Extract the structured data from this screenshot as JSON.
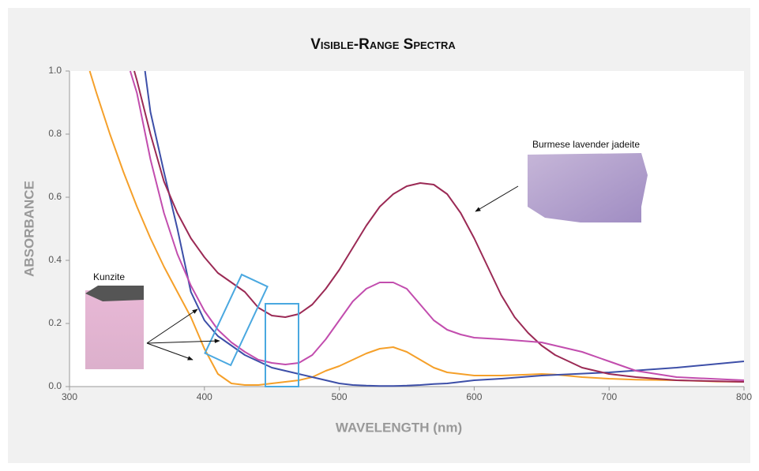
{
  "chart_data": {
    "type": "line",
    "title": "Visible-Range Spectra",
    "xlabel": "WAVELENGTH (nm)",
    "ylabel": "ABSORBANCE",
    "xlim": [
      300,
      800
    ],
    "ylim": [
      0,
      1
    ],
    "xticks": [
      300,
      400,
      500,
      600,
      700,
      800
    ],
    "yticks": [
      {
        "value": 0,
        "label": "0.0"
      },
      0.2,
      0.4,
      0.6,
      0.8,
      {
        "value": 1,
        "label": "1.0"
      }
    ],
    "annotations": [
      "Kunzite",
      "Burmese lavender jadeite"
    ],
    "series": [
      {
        "color": "#f5a02a",
        "x": [
          315,
          320,
          330,
          340,
          350,
          360,
          370,
          380,
          390,
          400,
          410,
          420,
          430,
          440,
          450,
          460,
          470,
          480,
          490,
          500,
          510,
          520,
          530,
          540,
          550,
          560,
          570,
          580,
          590,
          600,
          620,
          640,
          650,
          660,
          680,
          700,
          720,
          750,
          780,
          800
        ],
        "values": [
          1.0,
          0.93,
          0.8,
          0.68,
          0.57,
          0.47,
          0.38,
          0.3,
          0.22,
          0.12,
          0.04,
          0.01,
          0.005,
          0.005,
          0.01,
          0.015,
          0.02,
          0.03,
          0.05,
          0.065,
          0.085,
          0.105,
          0.12,
          0.125,
          0.11,
          0.085,
          0.06,
          0.045,
          0.04,
          0.035,
          0.035,
          0.038,
          0.04,
          0.038,
          0.03,
          0.025,
          0.022,
          0.02,
          0.016,
          0.015
        ]
      },
      {
        "color": "#3d4fa8",
        "x": [
          356,
          360,
          370,
          380,
          390,
          400,
          410,
          420,
          430,
          440,
          450,
          460,
          470,
          480,
          490,
          500,
          510,
          520,
          530,
          540,
          550,
          560,
          570,
          580,
          590,
          600,
          620,
          650,
          700,
          750,
          800
        ],
        "values": [
          1.0,
          0.87,
          0.68,
          0.5,
          0.3,
          0.21,
          0.16,
          0.13,
          0.1,
          0.08,
          0.06,
          0.05,
          0.04,
          0.03,
          0.02,
          0.01,
          0.005,
          0.003,
          0.002,
          0.002,
          0.003,
          0.005,
          0.008,
          0.01,
          0.015,
          0.02,
          0.025,
          0.035,
          0.045,
          0.06,
          0.08
        ]
      },
      {
        "color": "#9b2a55",
        "x": [
          348,
          350,
          360,
          370,
          380,
          390,
          400,
          410,
          420,
          430,
          440,
          450,
          460,
          470,
          480,
          490,
          500,
          510,
          520,
          530,
          540,
          550,
          560,
          570,
          580,
          590,
          600,
          610,
          620,
          630,
          640,
          650,
          660,
          670,
          680,
          690,
          700,
          720,
          750,
          800
        ],
        "values": [
          1.0,
          0.97,
          0.8,
          0.65,
          0.55,
          0.47,
          0.41,
          0.36,
          0.33,
          0.3,
          0.25,
          0.225,
          0.22,
          0.23,
          0.26,
          0.31,
          0.37,
          0.44,
          0.51,
          0.57,
          0.61,
          0.635,
          0.645,
          0.64,
          0.61,
          0.55,
          0.47,
          0.38,
          0.29,
          0.22,
          0.17,
          0.13,
          0.1,
          0.08,
          0.06,
          0.05,
          0.04,
          0.03,
          0.02,
          0.015
        ]
      },
      {
        "color": "#c24dae",
        "x": [
          345,
          350,
          360,
          370,
          380,
          390,
          400,
          410,
          420,
          430,
          440,
          450,
          460,
          470,
          480,
          490,
          500,
          510,
          520,
          530,
          540,
          550,
          560,
          570,
          580,
          590,
          600,
          620,
          650,
          680,
          700,
          720,
          750,
          800
        ],
        "values": [
          1.0,
          0.93,
          0.72,
          0.55,
          0.42,
          0.32,
          0.24,
          0.18,
          0.14,
          0.11,
          0.085,
          0.075,
          0.07,
          0.075,
          0.1,
          0.15,
          0.21,
          0.27,
          0.31,
          0.33,
          0.33,
          0.31,
          0.26,
          0.21,
          0.18,
          0.165,
          0.155,
          0.15,
          0.14,
          0.11,
          0.08,
          0.05,
          0.03,
          0.02
        ]
      }
    ]
  }
}
